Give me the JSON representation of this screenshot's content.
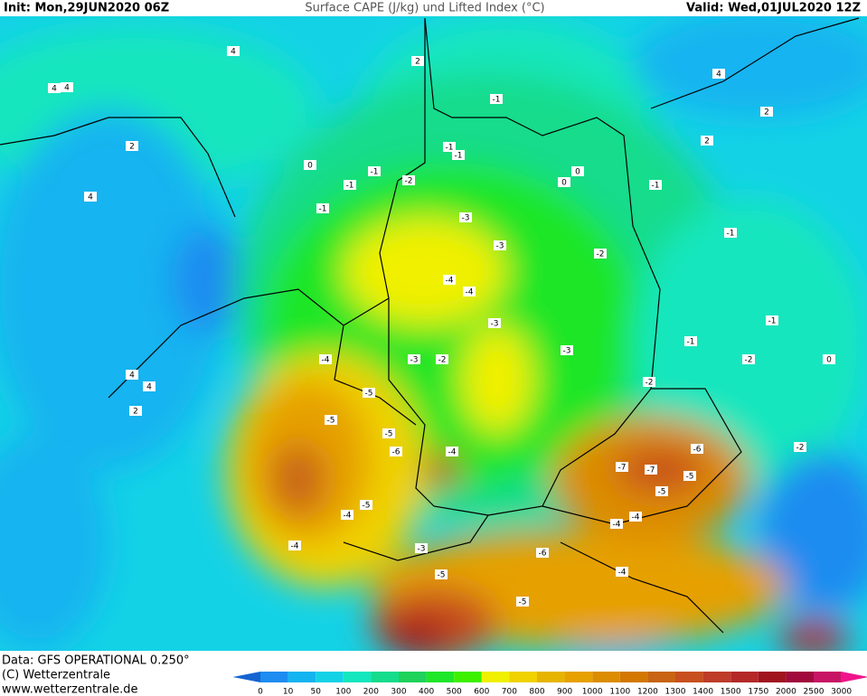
{
  "header": {
    "init": "Init: Mon,29JUN2020 06Z",
    "title": "Surface CAPE (J/kg) und Lifted Index (°C)",
    "valid": "Valid: Wed,01JUL2020 12Z"
  },
  "footer": {
    "data": "Data: GFS OPERATIONAL 0.250°",
    "copyright": "(C) Wetterzentrale",
    "url": "www.wetterzentrale.de"
  },
  "colorbar": {
    "labels": [
      0,
      10,
      50,
      100,
      200,
      300,
      400,
      500,
      600,
      700,
      800,
      900,
      1000,
      1100,
      1200,
      1300,
      1400,
      1500,
      1750,
      2000,
      2500,
      3000
    ],
    "colors": [
      "#1464d2",
      "#1e8cf0",
      "#14b4f0",
      "#14d2e6",
      "#14e6be",
      "#14dc8c",
      "#1ed25a",
      "#1ee628",
      "#3cf000",
      "#f0f000",
      "#f0d200",
      "#e6b400",
      "#e6a000",
      "#dc8c00",
      "#d27800",
      "#c86414",
      "#c8501e",
      "#be3c28",
      "#b42828",
      "#a0141e",
      "#a00a3c",
      "#c81464",
      "#f0148c"
    ]
  },
  "lifted_index_labels": [
    4,
    4,
    4,
    2,
    4,
    4,
    2,
    0,
    -1,
    -1,
    -1,
    -1,
    -2,
    -1,
    -1,
    0,
    0,
    -1,
    -3,
    -3,
    -4,
    -4,
    -3,
    -2,
    -3,
    -4,
    -5,
    -5,
    -5,
    -6,
    -5,
    -4,
    -4,
    -3,
    -4,
    -6,
    -7,
    -7,
    -5,
    -5,
    -4,
    -4,
    -5,
    -6,
    -5,
    -4,
    -2,
    -2,
    -1,
    2,
    4,
    2,
    2,
    4,
    -1,
    -2,
    0,
    -1,
    -2,
    -3
  ]
}
